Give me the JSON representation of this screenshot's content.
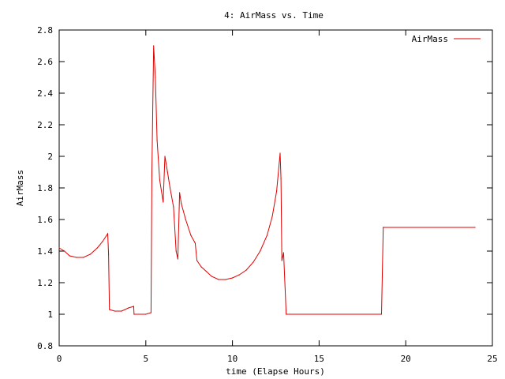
{
  "chart_data": {
    "type": "line",
    "title": "4: AirMass vs. Time",
    "xlabel": "time (Elapse Hours)",
    "ylabel": "AirMass",
    "xlim": [
      0,
      25
    ],
    "ylim": [
      0.8,
      2.8
    ],
    "xticks": [
      0,
      5,
      10,
      15,
      20,
      25
    ],
    "xtick_labels": [
      "0",
      "5",
      "10",
      "15",
      "20",
      "25"
    ],
    "yticks": [
      0.8,
      1,
      1.2,
      1.4,
      1.6,
      1.8,
      2,
      2.2,
      2.4,
      2.6,
      2.8
    ],
    "ytick_labels": [
      "0.8",
      "1",
      "1.2",
      "1.4",
      "1.6",
      "1.8",
      "2",
      "2.2",
      "2.4",
      "2.6",
      "2.8"
    ],
    "grid": false,
    "legend_position": "top-right",
    "series": [
      {
        "name": "AirMass",
        "color": "#e00000",
        "points": [
          [
            0.0,
            1.42
          ],
          [
            0.3,
            1.4
          ],
          [
            0.6,
            1.37
          ],
          [
            1.0,
            1.36
          ],
          [
            1.4,
            1.36
          ],
          [
            1.8,
            1.38
          ],
          [
            2.2,
            1.42
          ],
          [
            2.5,
            1.46
          ],
          [
            2.8,
            1.51
          ],
          [
            2.85,
            1.38
          ],
          [
            2.9,
            1.03
          ],
          [
            3.2,
            1.02
          ],
          [
            3.6,
            1.02
          ],
          [
            4.0,
            1.04
          ],
          [
            4.3,
            1.05
          ],
          [
            4.32,
            1.0
          ],
          [
            5.0,
            1.0
          ],
          [
            5.3,
            1.01
          ],
          [
            5.35,
            1.9
          ],
          [
            5.45,
            2.7
          ],
          [
            5.55,
            2.5
          ],
          [
            5.65,
            2.1
          ],
          [
            5.8,
            1.85
          ],
          [
            6.0,
            1.71
          ],
          [
            6.1,
            2.0
          ],
          [
            6.25,
            1.9
          ],
          [
            6.4,
            1.8
          ],
          [
            6.6,
            1.68
          ],
          [
            6.75,
            1.4
          ],
          [
            6.85,
            1.35
          ],
          [
            6.95,
            1.77
          ],
          [
            7.05,
            1.7
          ],
          [
            7.3,
            1.6
          ],
          [
            7.6,
            1.5
          ],
          [
            7.85,
            1.45
          ],
          [
            7.95,
            1.34
          ],
          [
            8.2,
            1.3
          ],
          [
            8.5,
            1.27
          ],
          [
            8.8,
            1.24
          ],
          [
            9.2,
            1.22
          ],
          [
            9.6,
            1.22
          ],
          [
            10.0,
            1.23
          ],
          [
            10.4,
            1.25
          ],
          [
            10.8,
            1.28
          ],
          [
            11.2,
            1.33
          ],
          [
            11.6,
            1.4
          ],
          [
            12.0,
            1.5
          ],
          [
            12.3,
            1.62
          ],
          [
            12.55,
            1.78
          ],
          [
            12.75,
            2.02
          ],
          [
            12.8,
            1.86
          ],
          [
            12.85,
            1.34
          ],
          [
            12.95,
            1.39
          ],
          [
            13.1,
            1.0
          ],
          [
            18.6,
            1.0
          ],
          [
            18.7,
            1.55
          ],
          [
            24.0,
            1.55
          ]
        ]
      }
    ]
  }
}
